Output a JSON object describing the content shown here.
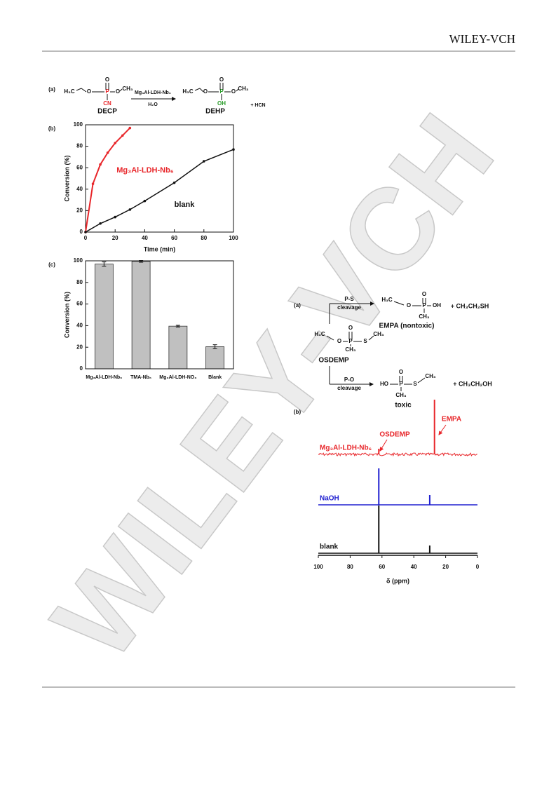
{
  "header": {
    "publisher": "WILEY-VCH"
  },
  "watermark": "WILEY-VCH",
  "scheme_left": {
    "label": "(a)",
    "reactant": {
      "atoms": [
        "H₃C",
        "O",
        "P",
        "O",
        "CH₃",
        "O",
        "CN"
      ],
      "name": "DECP"
    },
    "reagent": "Mg₃Al-LDH-Nb₆",
    "solvent": "H₂O",
    "product": {
      "atoms": [
        "H₃C",
        "O",
        "P",
        "O",
        "CH₃",
        "O",
        "OH"
      ],
      "name": "DEHP"
    },
    "byproduct": "+ HCN"
  },
  "scheme_right": {
    "label": "(a)",
    "reactant": {
      "atoms": [
        "H₃C",
        "O",
        "P",
        "S",
        "CH₃",
        "O",
        "CH₃"
      ],
      "name": "OSDEMP"
    },
    "path1": {
      "bond": "P-S",
      "label": "cleavage",
      "atoms": [
        "H₃C",
        "O",
        "P",
        "OH",
        "O",
        "CH₃"
      ],
      "name": "EMPA (nontoxic)",
      "byproduct": "+ CH₃CH₂SH"
    },
    "path2": {
      "bond": "P-O",
      "label": "cleavage",
      "atoms": [
        "HO",
        "P",
        "S",
        "CH₃",
        "O",
        "CH₃"
      ],
      "name": "toxic",
      "byproduct": "+ CH₃CH₂OH"
    }
  },
  "chart_data": [
    {
      "type": "line",
      "panel": "(b)",
      "xlabel": "Time (min)",
      "ylabel": "Conversion (%)",
      "xlim": [
        0,
        100
      ],
      "xticks": [
        0,
        20,
        40,
        60,
        80,
        100
      ],
      "ylim": [
        0,
        100
      ],
      "yticks": [
        0,
        20,
        40,
        60,
        80,
        100
      ],
      "series": [
        {
          "name": "Mg₃Al-LDH-Nb₆",
          "color": "#e8262a",
          "x": [
            0,
            5,
            10,
            15,
            20,
            25,
            30
          ],
          "values": [
            0,
            45,
            63,
            74,
            83,
            90,
            97
          ]
        },
        {
          "name": "blank",
          "color": "#111111",
          "x": [
            0,
            10,
            20,
            30,
            40,
            60,
            80,
            100
          ],
          "values": [
            0,
            8,
            14,
            21,
            29,
            46,
            66,
            77
          ]
        }
      ]
    },
    {
      "type": "bar",
      "panel": "(c)",
      "ylabel": "Conversion (%)",
      "color": "#c0c0c0",
      "categories": [
        "Mg₃Al-LDH-Nb₆",
        "TMA-Nb₆",
        "Mg₃Al-LDH-NO₃",
        "Blank"
      ],
      "values": [
        97,
        99.5,
        39.5,
        20.5
      ],
      "errors": [
        2,
        0.8,
        0.8,
        1.8
      ],
      "ylim": [
        0,
        100
      ],
      "yticks": [
        0,
        20,
        40,
        60,
        80,
        100
      ]
    },
    {
      "type": "spectrum",
      "panel": "(b)",
      "xlabel": "δ (ppm)",
      "xlim": [
        100,
        0
      ],
      "xticks": [
        100,
        80,
        60,
        40,
        20,
        0
      ],
      "annotations": [
        "OSDEMP",
        "EMPA"
      ],
      "series": [
        {
          "name": "Mg₃Al-LDH-Nb₆",
          "color": "#e8262a",
          "peaks": {
            "x": [
              62,
              27
            ],
            "values": [
              8,
              78
            ]
          }
        },
        {
          "name": "NaOH",
          "color": "#2020d0",
          "peaks": {
            "x": [
              62,
              30
            ],
            "values": [
              52,
              14
            ]
          }
        },
        {
          "name": "blank",
          "color": "#111111",
          "peaks": {
            "x": [
              62,
              30
            ],
            "values": [
              68,
              11
            ]
          }
        }
      ]
    }
  ]
}
